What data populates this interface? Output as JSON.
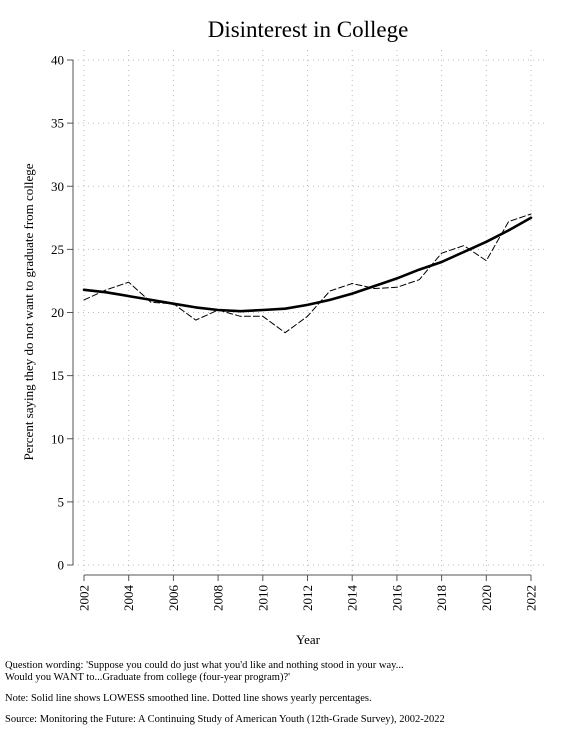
{
  "chart_data": {
    "type": "line",
    "title": "Disinterest in College",
    "xlabel": "Year",
    "ylabel": "Percent saying they do not want to graduate from college",
    "xlim": [
      2002,
      2022
    ],
    "ylim": [
      0,
      40
    ],
    "x_ticks": [
      2002,
      2004,
      2006,
      2008,
      2010,
      2012,
      2014,
      2016,
      2018,
      2020,
      2022
    ],
    "y_ticks": [
      0,
      5,
      10,
      15,
      20,
      25,
      30,
      35,
      40
    ],
    "grid": true,
    "series": [
      {
        "style": "dashed",
        "x": [
          2002,
          2003,
          2004,
          2005,
          2006,
          2007,
          2008,
          2009,
          2010,
          2011,
          2012,
          2013,
          2014,
          2015,
          2016,
          2017,
          2018,
          2019,
          2020,
          2021,
          2022
        ],
        "values": [
          21.0,
          21.8,
          22.4,
          20.8,
          20.7,
          19.4,
          20.2,
          19.7,
          19.7,
          18.4,
          19.7,
          21.7,
          22.3,
          21.9,
          22.0,
          22.6,
          24.7,
          25.3,
          24.1,
          27.2,
          27.8
        ]
      },
      {
        "style": "solid",
        "x": [
          2002,
          2003,
          2004,
          2005,
          2006,
          2007,
          2008,
          2009,
          2010,
          2011,
          2012,
          2013,
          2014,
          2015,
          2016,
          2017,
          2018,
          2019,
          2020,
          2021,
          2022
        ],
        "values": [
          21.8,
          21.6,
          21.3,
          21.0,
          20.7,
          20.4,
          20.2,
          20.1,
          20.2,
          20.3,
          20.6,
          21.0,
          21.5,
          22.1,
          22.7,
          23.4,
          24.0,
          24.8,
          25.6,
          26.5,
          27.5
        ]
      }
    ]
  },
  "notes": {
    "question_line1": "Question wording: 'Suppose you could do just what you'd like and nothing stood in your way...",
    "question_line2": "Would you WANT to...Graduate from college (four-year program)?'",
    "method": "Note: Solid line shows LOWESS smoothed line. Dotted line shows yearly percentages.",
    "source": "Source: Monitoring the Future: A Continuing Study of American Youth (12th-Grade Survey), 2002-2022"
  }
}
